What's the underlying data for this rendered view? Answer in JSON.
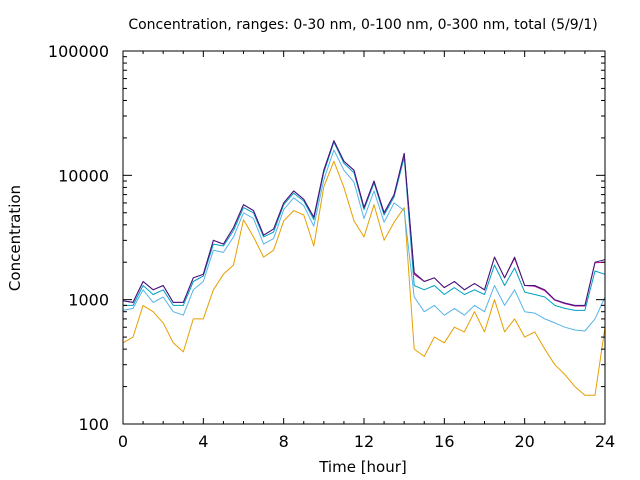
{
  "chart_data": {
    "type": "line",
    "title": "Concentration, ranges: 0-30 nm, 0-100 nm, 0-300 nm, total (5/9/1)",
    "xlabel": "Time [hour]",
    "ylabel": "Concentration",
    "xlim": [
      0,
      24
    ],
    "ylim": [
      100,
      100000
    ],
    "yscale": "log",
    "grid": false,
    "legend": "none",
    "x_ticks": [
      "0",
      "4",
      "8",
      "12",
      "16",
      "20",
      "24"
    ],
    "y_ticks": [
      "100",
      "1000",
      "10000",
      "100000"
    ],
    "x": [
      0,
      0.5,
      1,
      1.5,
      2,
      2.5,
      3,
      3.5,
      4,
      4.5,
      5,
      5.5,
      6,
      6.5,
      7,
      7.5,
      8,
      8.5,
      9,
      9.5,
      10,
      10.5,
      11,
      11.5,
      12,
      12.5,
      13,
      13.5,
      14,
      14.5,
      15,
      15.5,
      16,
      16.5,
      17,
      17.5,
      18,
      18.5,
      19,
      19.5,
      20,
      20.5,
      21,
      21.5,
      22,
      22.5,
      23,
      23.5,
      24
    ],
    "series": [
      {
        "color": "#3d1a78",
        "values": [
          980,
          950,
          1400,
          1200,
          1300,
          950,
          950,
          1500,
          1600,
          3000,
          2800,
          3800,
          5800,
          5200,
          3300,
          3700,
          6000,
          7500,
          6400,
          4600,
          11000,
          19000,
          13000,
          11000,
          5500,
          9000,
          5000,
          7000,
          15000,
          1650,
          1400,
          1500,
          1250,
          1400,
          1200,
          1350,
          1200,
          2200,
          1500,
          2200,
          1300,
          1300,
          1200,
          1000,
          940,
          900,
          900,
          2000,
          2100
        ]
      },
      {
        "color": "#c000a0",
        "values": [
          980,
          950,
          1400,
          1200,
          1300,
          950,
          950,
          1500,
          1600,
          3000,
          2800,
          3800,
          5800,
          5200,
          3300,
          3700,
          6000,
          7500,
          6400,
          4600,
          11000,
          19000,
          13000,
          11000,
          5500,
          9000,
          5000,
          7000,
          15000,
          1600,
          1400,
          1500,
          1250,
          1400,
          1200,
          1350,
          1200,
          2200,
          1500,
          2150,
          1300,
          1280,
          1180,
          990,
          930,
          890,
          890,
          1980,
          2000
        ]
      },
      {
        "color": "#00a0c0",
        "values": [
          900,
          900,
          1300,
          1100,
          1200,
          900,
          900,
          1400,
          1550,
          2800,
          2700,
          3600,
          5500,
          5000,
          3200,
          3500,
          5800,
          7200,
          6200,
          4400,
          10500,
          18500,
          12500,
          10500,
          5300,
          8700,
          4800,
          6700,
          14000,
          1300,
          1200,
          1300,
          1100,
          1250,
          1100,
          1200,
          1100,
          1900,
          1300,
          1800,
          1150,
          1100,
          1050,
          900,
          850,
          820,
          820,
          1700,
          1600
        ]
      },
      {
        "color": "#56b4e9",
        "values": [
          820,
          850,
          1200,
          950,
          1050,
          800,
          750,
          1200,
          1400,
          2500,
          2400,
          3200,
          5000,
          4500,
          2800,
          3100,
          5300,
          6600,
          5700,
          3900,
          9200,
          16000,
          11000,
          8800,
          4500,
          7500,
          4200,
          6000,
          5200,
          1050,
          800,
          900,
          750,
          850,
          750,
          900,
          800,
          1300,
          900,
          1200,
          800,
          780,
          700,
          650,
          600,
          570,
          560,
          700,
          1050
        ]
      },
      {
        "color": "#e69f00",
        "values": [
          450,
          500,
          900,
          800,
          650,
          450,
          380,
          700,
          700,
          1200,
          1600,
          1900,
          4400,
          3200,
          2200,
          2500,
          4300,
          5200,
          4800,
          2700,
          8100,
          13000,
          8000,
          4300,
          3200,
          5800,
          3000,
          4200,
          5500,
          400,
          350,
          500,
          450,
          600,
          550,
          800,
          550,
          1000,
          550,
          700,
          500,
          550,
          400,
          300,
          250,
          200,
          170,
          170,
          600
        ]
      }
    ]
  }
}
